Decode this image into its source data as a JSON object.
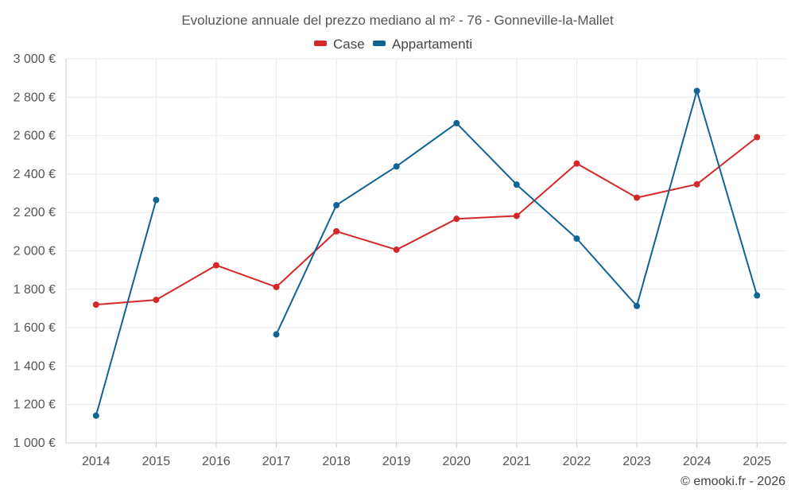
{
  "chart_data": {
    "type": "line",
    "title": "Evoluzione annuale del prezzo mediano al m² - 76 - Gonneville-la-Mallet",
    "xlabel": "",
    "ylabel": "",
    "categories": [
      "2014",
      "2015",
      "2016",
      "2017",
      "2018",
      "2019",
      "2020",
      "2021",
      "2022",
      "2023",
      "2024",
      "2025"
    ],
    "ylim": [
      1000,
      3000
    ],
    "yticks": [
      1000,
      1200,
      1400,
      1600,
      1800,
      2000,
      2200,
      2400,
      2600,
      2800,
      3000
    ],
    "ytick_labels": [
      "1 000 €",
      "1 200 €",
      "1 400 €",
      "1 600 €",
      "1 800 €",
      "2 000 €",
      "2 200 €",
      "2 400 €",
      "2 600 €",
      "2 800 €",
      "3 000 €"
    ],
    "grid": true,
    "legend_position": "top-center",
    "series": [
      {
        "name": "Case",
        "color": "#d62728",
        "values": [
          1720,
          1745,
          1925,
          1812,
          2102,
          2006,
          2167,
          2182,
          2455,
          2277,
          2347,
          2592
        ]
      },
      {
        "name": "Appartamenti",
        "color": "#0f6396",
        "values": [
          1142,
          2265,
          null,
          1565,
          2238,
          2440,
          2665,
          2345,
          2064,
          1713,
          2833,
          1768
        ]
      }
    ]
  },
  "credit": "© emooki.fr - 2026"
}
